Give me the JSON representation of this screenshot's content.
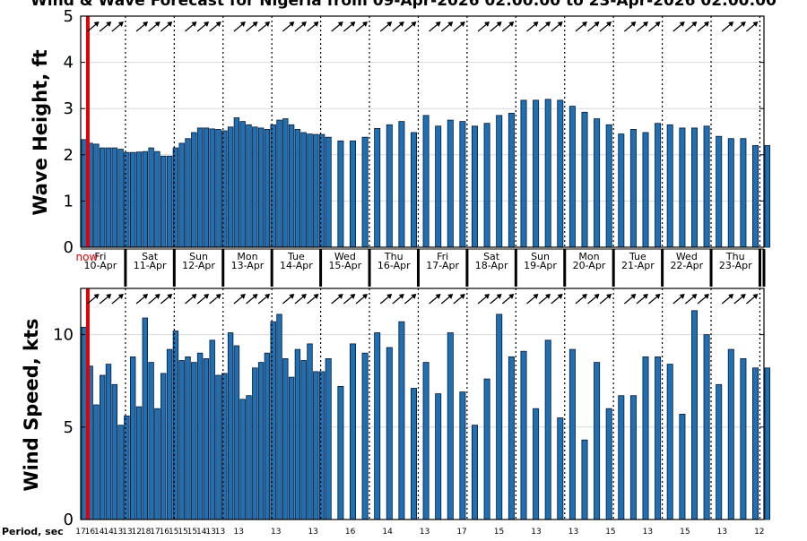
{
  "title": "Wind & Wave Forecast for Nigeria from 09-Apr-2026 02:00:00 to 23-Apr-2026 02:00:00",
  "now_label": "now",
  "period_label": "Period, sec",
  "colors": {
    "bar": "#1f6fb4",
    "bar_edge": "#0a1a33",
    "now": "#e00000",
    "grid": "#d8d8d8",
    "axis": "#000000"
  },
  "chart_data": [
    {
      "type": "bar",
      "ylabel": "Wave Height, ft",
      "ylim": [
        0,
        5
      ],
      "yticks": [
        0,
        1,
        2,
        3,
        4,
        5
      ],
      "x_start_hour": 0,
      "x_end_hour": 336,
      "now_hour": 3.5,
      "days": [
        {
          "dow": "Fri",
          "date": "10-Apr"
        },
        {
          "dow": "Sat",
          "date": "11-Apr"
        },
        {
          "dow": "Sun",
          "date": "12-Apr"
        },
        {
          "dow": "Mon",
          "date": "13-Apr"
        },
        {
          "dow": "Tue",
          "date": "14-Apr"
        },
        {
          "dow": "Wed",
          "date": "15-Apr"
        },
        {
          "dow": "Thu",
          "date": "16-Apr"
        },
        {
          "dow": "Fri",
          "date": "17-Apr"
        },
        {
          "dow": "Sat",
          "date": "18-Apr"
        },
        {
          "dow": "Sun",
          "date": "19-Apr"
        },
        {
          "dow": "Mon",
          "date": "20-Apr"
        },
        {
          "dow": "Tue",
          "date": "21-Apr"
        },
        {
          "dow": "Wed",
          "date": "22-Apr"
        },
        {
          "dow": "Thu",
          "date": "23-Apr"
        }
      ],
      "day_boundaries_hour": [
        22,
        46,
        70,
        94,
        118,
        142,
        166,
        190,
        214,
        238,
        262,
        286,
        310,
        334
      ],
      "hours": [
        0,
        3,
        6,
        9,
        12,
        15,
        18,
        21,
        24,
        27,
        30,
        33,
        36,
        39,
        42,
        45,
        48,
        51,
        54,
        57,
        60,
        63,
        66,
        69,
        72,
        75,
        78,
        81,
        84,
        87,
        90,
        93,
        96,
        99,
        102,
        105,
        108,
        111,
        114,
        117,
        120,
        126,
        132,
        138,
        144,
        150,
        156,
        162,
        168,
        174,
        180,
        186,
        192,
        198,
        204,
        210,
        216,
        222,
        228,
        234,
        240,
        246,
        252,
        258,
        264,
        270,
        276,
        282,
        288,
        294,
        300,
        306,
        312,
        318,
        324,
        330,
        336
      ],
      "values": [
        2.33,
        2.25,
        2.23,
        2.15,
        2.15,
        2.15,
        2.12,
        2.05,
        2.05,
        2.06,
        2.07,
        2.15,
        2.07,
        1.97,
        1.97,
        2.15,
        2.25,
        2.35,
        2.48,
        2.58,
        2.58,
        2.56,
        2.55,
        2.52,
        2.6,
        2.8,
        2.72,
        2.65,
        2.6,
        2.58,
        2.55,
        2.65,
        2.75,
        2.78,
        2.65,
        2.55,
        2.48,
        2.45,
        2.44,
        2.44,
        2.38,
        2.3,
        2.3,
        2.38,
        2.57,
        2.65,
        2.72,
        2.48,
        2.85,
        2.62,
        2.75,
        2.72,
        2.62,
        2.68,
        2.85,
        2.9,
        3.18,
        3.18,
        3.2,
        3.18,
        3.05,
        2.92,
        2.78,
        2.65,
        2.45,
        2.55,
        2.48,
        2.68,
        2.65,
        2.58,
        2.58,
        2.62,
        2.4,
        2.35,
        2.35,
        2.2,
        2.2
      ]
    },
    {
      "type": "bar",
      "ylabel": "Wind Speed, kts",
      "ylim": [
        0,
        12.5
      ],
      "yticks": [
        0,
        5,
        10
      ],
      "hours": [
        0,
        3,
        6,
        9,
        12,
        15,
        18,
        21,
        24,
        27,
        30,
        33,
        36,
        39,
        42,
        45,
        48,
        51,
        54,
        57,
        60,
        63,
        66,
        69,
        72,
        75,
        78,
        81,
        84,
        87,
        90,
        93,
        96,
        99,
        102,
        105,
        108,
        111,
        114,
        117,
        120,
        126,
        132,
        138,
        144,
        150,
        156,
        162,
        168,
        174,
        180,
        186,
        192,
        198,
        204,
        210,
        216,
        222,
        228,
        234,
        240,
        246,
        252,
        258,
        264,
        270,
        276,
        282,
        288,
        294,
        300,
        306,
        312,
        318,
        324,
        330,
        336
      ],
      "values": [
        10.4,
        8.3,
        6.2,
        7.8,
        8.4,
        7.3,
        5.1,
        5.6,
        8.8,
        6.1,
        10.9,
        8.5,
        6.0,
        7.9,
        9.2,
        10.2,
        8.6,
        8.8,
        8.5,
        9.0,
        8.7,
        9.7,
        7.8,
        7.9,
        10.1,
        9.4,
        6.5,
        6.7,
        8.2,
        8.5,
        9.0,
        10.7,
        11.1,
        8.7,
        7.7,
        9.2,
        8.6,
        9.5,
        8.0,
        8.0,
        8.7,
        7.2,
        9.5,
        9.0,
        10.1,
        9.3,
        10.7,
        7.1,
        8.5,
        6.8,
        10.1,
        6.9,
        5.1,
        7.6,
        11.1,
        8.8,
        9.1,
        6.0,
        9.7,
        5.5,
        9.2,
        4.3,
        8.5,
        6.0,
        6.7,
        6.7,
        8.8,
        8.8,
        8.4,
        5.7,
        11.3,
        10.0,
        7.3,
        9.2,
        8.7,
        8.2,
        8.2
      ]
    }
  ],
  "arrows": {
    "direction": "NE",
    "hours": [
      6,
      12,
      18,
      30,
      36,
      42,
      54,
      60,
      66,
      78,
      84,
      90,
      102,
      108,
      114,
      126,
      132,
      138,
      150,
      156,
      162,
      174,
      180,
      186,
      198,
      204,
      210,
      222,
      228,
      234,
      246,
      252,
      258,
      270,
      276,
      282,
      294,
      300,
      306,
      318,
      324,
      330
    ]
  },
  "periods": [
    {
      "hour": 0,
      "label": "17"
    },
    {
      "hour": 6,
      "label": "16"
    },
    {
      "hour": 12,
      "label": "14"
    },
    {
      "hour": 18,
      "label": "14"
    },
    {
      "hour": 24,
      "label": "13"
    },
    {
      "hour": 30,
      "label": "13"
    },
    {
      "hour": 36,
      "label": "12"
    },
    {
      "hour": 42,
      "label": "18"
    },
    {
      "hour": 48,
      "label": "17"
    },
    {
      "hour": 54,
      "label": "16"
    },
    {
      "hour": 60,
      "label": "15"
    },
    {
      "hour": 66,
      "label": "15"
    },
    {
      "hour": 72,
      "label": "15"
    },
    {
      "hour": 78,
      "label": "14"
    },
    {
      "hour": 84,
      "label": "13"
    },
    {
      "hour": 90,
      "label": "13"
    },
    {
      "hour": 102,
      "label": "13"
    },
    {
      "hour": 126,
      "label": "13"
    },
    {
      "hour": 150,
      "label": "13"
    },
    {
      "hour": 174,
      "label": "16"
    },
    {
      "hour": 198,
      "label": "14"
    },
    {
      "hour": 222,
      "label": "13"
    },
    {
      "hour": 246,
      "label": "17"
    },
    {
      "hour": 270,
      "label": "15"
    },
    {
      "hour": 294,
      "label": "13"
    },
    {
      "hour": 318,
      "label": "13"
    },
    {
      "hour": 342,
      "label": "15"
    },
    {
      "hour": 366,
      "label": "13"
    },
    {
      "hour": 390,
      "label": "15"
    },
    {
      "hour": 414,
      "label": "13"
    },
    {
      "hour": 438,
      "label": "12"
    }
  ]
}
